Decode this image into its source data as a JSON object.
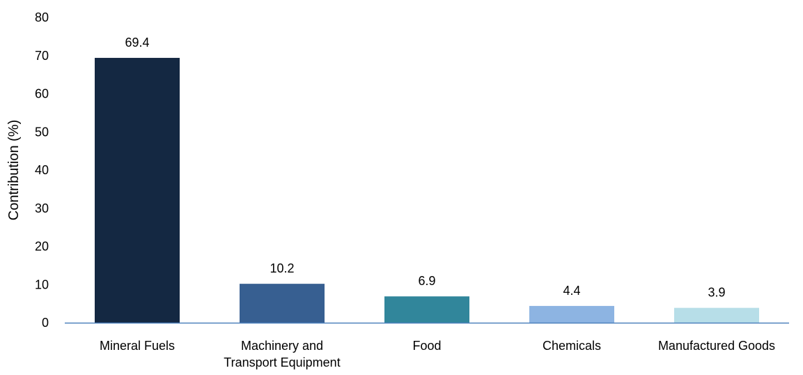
{
  "chart_data": {
    "type": "bar",
    "title": "",
    "xlabel": "",
    "ylabel": "Contribution (%)",
    "ylim": [
      0,
      80
    ],
    "yticks": [
      "0",
      "10",
      "20",
      "30",
      "40",
      "50",
      "60",
      "70",
      "80"
    ],
    "grid": false,
    "categories": [
      "Mineral Fuels",
      "Machinery and Transport Equipment",
      "Food",
      "Chemicals",
      "Manufactured Goods"
    ],
    "category_lines": [
      [
        "Mineral Fuels"
      ],
      [
        "Machinery and",
        "Transport Equipment"
      ],
      [
        "Food"
      ],
      [
        "Chemicals"
      ],
      [
        "Manufactured Goods"
      ]
    ],
    "values": [
      69.4,
      10.2,
      6.9,
      4.4,
      3.9
    ],
    "data_labels": [
      "69.4",
      "10.2",
      "6.9",
      "4.4",
      "3.9"
    ],
    "colors": [
      "#142842",
      "#375F91",
      "#31869B",
      "#8DB4E2",
      "#B7DEE8"
    ],
    "axis_color": "#4F81BD"
  }
}
